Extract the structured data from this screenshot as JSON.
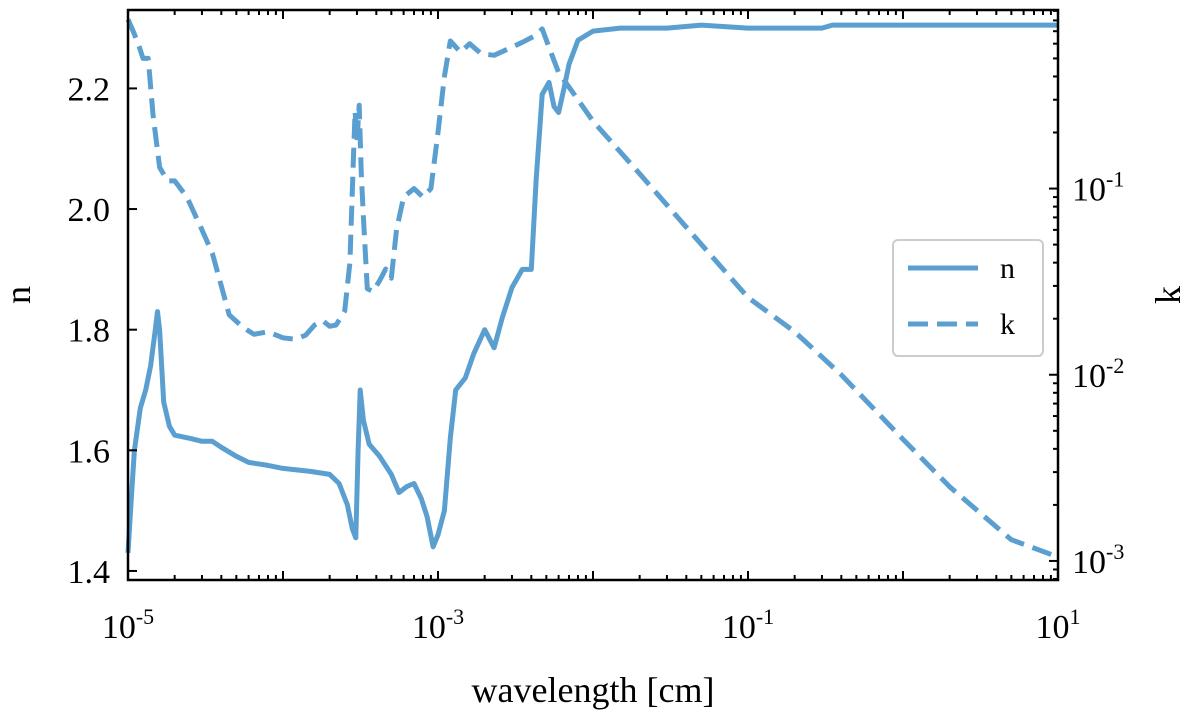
{
  "chart_data": {
    "type": "line",
    "xscale": "log",
    "xlim": [
      1e-05,
      10
    ],
    "xlabel": "wavelength [cm]",
    "x_ticks": [
      {
        "base": "10",
        "exp": "-5"
      },
      {
        "base": "10",
        "exp": "-3"
      },
      {
        "base": "10",
        "exp": "-1"
      },
      {
        "base": "10",
        "exp": "1"
      }
    ],
    "left_axis": {
      "label": "n",
      "scale": "linear",
      "lim": [
        1.385,
        2.33
      ],
      "ticks": [
        "1.4",
        "1.6",
        "1.8",
        "2.0",
        "2.2"
      ]
    },
    "right_axis": {
      "label": "k",
      "scale": "log",
      "lim": [
        0.00079,
        0.91
      ],
      "ticks": [
        {
          "base": "10",
          "exp": "-3"
        },
        {
          "base": "10",
          "exp": "-2"
        },
        {
          "base": "10",
          "exp": "-1"
        }
      ]
    },
    "color": "#5b9fd0",
    "legend_position": "center-right",
    "series": [
      {
        "name": "n",
        "axis": "left",
        "style": "solid",
        "points": [
          [
            1e-05,
            1.43
          ],
          [
            1.05e-05,
            1.52
          ],
          [
            1.1e-05,
            1.6
          ],
          [
            1.2e-05,
            1.67
          ],
          [
            1.3e-05,
            1.7
          ],
          [
            1.4e-05,
            1.74
          ],
          [
            1.5e-05,
            1.8
          ],
          [
            1.55e-05,
            1.83
          ],
          [
            1.6e-05,
            1.8
          ],
          [
            1.7e-05,
            1.68
          ],
          [
            1.85e-05,
            1.64
          ],
          [
            2e-05,
            1.625
          ],
          [
            2.5e-05,
            1.62
          ],
          [
            3e-05,
            1.615
          ],
          [
            3.5e-05,
            1.615
          ],
          [
            4e-05,
            1.605
          ],
          [
            5e-05,
            1.59
          ],
          [
            6e-05,
            1.58
          ],
          [
            8e-05,
            1.575
          ],
          [
            0.0001,
            1.57
          ],
          [
            0.00015,
            1.565
          ],
          [
            0.0002,
            1.56
          ],
          [
            0.00023,
            1.545
          ],
          [
            0.00026,
            1.51
          ],
          [
            0.00028,
            1.47
          ],
          [
            0.000295,
            1.455
          ],
          [
            0.000305,
            1.6
          ],
          [
            0.000315,
            1.7
          ],
          [
            0.00033,
            1.65
          ],
          [
            0.00036,
            1.61
          ],
          [
            0.00042,
            1.59
          ],
          [
            0.0005,
            1.56
          ],
          [
            0.00056,
            1.53
          ],
          [
            0.00063,
            1.54
          ],
          [
            0.0007,
            1.545
          ],
          [
            0.00078,
            1.52
          ],
          [
            0.00085,
            1.49
          ],
          [
            0.00093,
            1.44
          ],
          [
            0.001,
            1.46
          ],
          [
            0.0011,
            1.5
          ],
          [
            0.0012,
            1.62
          ],
          [
            0.0013,
            1.7
          ],
          [
            0.0015,
            1.72
          ],
          [
            0.0017,
            1.76
          ],
          [
            0.002,
            1.8
          ],
          [
            0.0023,
            1.77
          ],
          [
            0.0026,
            1.82
          ],
          [
            0.003,
            1.87
          ],
          [
            0.0035,
            1.9
          ],
          [
            0.004,
            1.9
          ],
          [
            0.0043,
            2.05
          ],
          [
            0.0047,
            2.19
          ],
          [
            0.0052,
            2.21
          ],
          [
            0.0056,
            2.17
          ],
          [
            0.006,
            2.16
          ],
          [
            0.0065,
            2.2
          ],
          [
            0.007,
            2.24
          ],
          [
            0.008,
            2.28
          ],
          [
            0.01,
            2.295
          ],
          [
            0.015,
            2.3
          ],
          [
            0.03,
            2.3
          ],
          [
            0.05,
            2.305
          ],
          [
            0.1,
            2.3
          ],
          [
            0.3,
            2.3
          ],
          [
            0.35,
            2.305
          ],
          [
            1,
            2.305
          ],
          [
            10,
            2.305
          ]
        ]
      },
      {
        "name": "k",
        "axis": "right",
        "style": "dashed",
        "points": [
          [
            1e-05,
            0.81
          ],
          [
            1.08e-05,
            0.7
          ],
          [
            1.18e-05,
            0.58
          ],
          [
            1.25e-05,
            0.5
          ],
          [
            1.35e-05,
            0.5
          ],
          [
            1.45e-05,
            0.25
          ],
          [
            1.6e-05,
            0.13
          ],
          [
            1.8e-05,
            0.11
          ],
          [
            2e-05,
            0.11
          ],
          [
            2.4e-05,
            0.09
          ],
          [
            3e-05,
            0.06
          ],
          [
            3.5e-05,
            0.045
          ],
          [
            4e-05,
            0.03
          ],
          [
            4.5e-05,
            0.021
          ],
          [
            5.5e-05,
            0.018
          ],
          [
            6.5e-05,
            0.0165
          ],
          [
            8e-05,
            0.017
          ],
          [
            0.0001,
            0.0158
          ],
          [
            0.00012,
            0.0155
          ],
          [
            0.00014,
            0.0163
          ],
          [
            0.00016,
            0.0185
          ],
          [
            0.00018,
            0.0195
          ],
          [
            0.0002,
            0.0182
          ],
          [
            0.00022,
            0.0185
          ],
          [
            0.00025,
            0.022
          ],
          [
            0.00027,
            0.04
          ],
          [
            0.000285,
            0.15
          ],
          [
            0.000292,
            0.26
          ],
          [
            0.0003,
            0.18
          ],
          [
            0.00031,
            0.28
          ],
          [
            0.00032,
            0.12
          ],
          [
            0.00033,
            0.07
          ],
          [
            0.00035,
            0.029
          ],
          [
            0.00038,
            0.028
          ],
          [
            0.00042,
            0.032
          ],
          [
            0.00046,
            0.037
          ],
          [
            0.0005,
            0.033
          ],
          [
            0.00054,
            0.06
          ],
          [
            0.0006,
            0.09
          ],
          [
            0.0007,
            0.1
          ],
          [
            0.0008,
            0.09
          ],
          [
            0.0009,
            0.1
          ],
          [
            0.001,
            0.2
          ],
          [
            0.0011,
            0.4
          ],
          [
            0.0012,
            0.62
          ],
          [
            0.0014,
            0.54
          ],
          [
            0.0016,
            0.6
          ],
          [
            0.0019,
            0.53
          ],
          [
            0.0023,
            0.52
          ],
          [
            0.0028,
            0.56
          ],
          [
            0.0035,
            0.61
          ],
          [
            0.0042,
            0.66
          ],
          [
            0.0047,
            0.72
          ],
          [
            0.0053,
            0.55
          ],
          [
            0.006,
            0.42
          ],
          [
            0.008,
            0.3
          ],
          [
            0.01,
            0.23
          ],
          [
            0.02,
            0.12
          ],
          [
            0.04,
            0.062
          ],
          [
            0.1,
            0.026
          ],
          [
            0.2,
            0.017
          ],
          [
            0.4,
            0.01
          ],
          [
            1,
            0.0045
          ],
          [
            2,
            0.0025
          ],
          [
            5,
            0.0013
          ],
          [
            10,
            0.00105
          ]
        ]
      }
    ]
  }
}
